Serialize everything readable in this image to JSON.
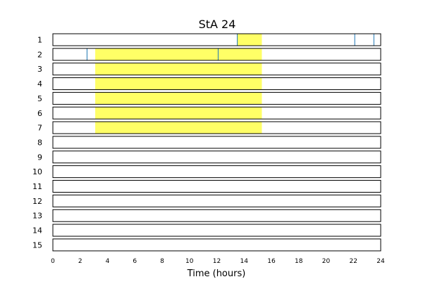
{
  "chart_data": {
    "type": "heatmap",
    "title": "StA 24",
    "xlabel": "Time (hours)",
    "ylabel": "",
    "xlim": [
      0,
      24
    ],
    "x_ticks": [
      0,
      2,
      4,
      6,
      8,
      10,
      12,
      14,
      16,
      18,
      20,
      22,
      24
    ],
    "rows": [
      "1",
      "2",
      "3",
      "4",
      "5",
      "6",
      "7",
      "8",
      "9",
      "10",
      "11",
      "12",
      "13",
      "14",
      "15"
    ],
    "highlight_color": "#ffff66",
    "marker_color": "#1f77b4",
    "highlight_spans": [
      {
        "row": "1",
        "start": 13.5,
        "end": 15.3
      },
      {
        "row": "2",
        "start": 3.1,
        "end": 15.3
      },
      {
        "row": "3",
        "start": 3.1,
        "end": 15.3
      },
      {
        "row": "4",
        "start": 3.1,
        "end": 15.3
      },
      {
        "row": "5",
        "start": 3.1,
        "end": 15.3
      },
      {
        "row": "6",
        "start": 3.1,
        "end": 15.3
      },
      {
        "row": "7",
        "start": 3.1,
        "end": 15.3
      }
    ],
    "markers": [
      {
        "row": "1",
        "t": 13.5
      },
      {
        "row": "1",
        "t": 22.1
      },
      {
        "row": "1",
        "t": 23.5
      },
      {
        "row": "2",
        "t": 2.5
      },
      {
        "row": "2",
        "t": 12.1
      }
    ],
    "grid": false
  }
}
